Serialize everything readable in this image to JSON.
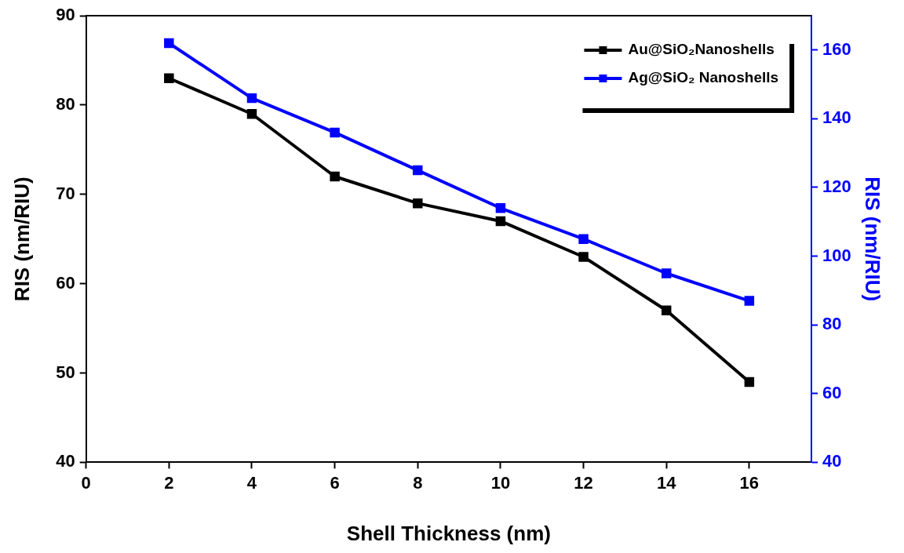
{
  "chart_data": {
    "type": "line",
    "xlabel": "Shell Thickness (nm)",
    "ylabel": "RIS (nm/RIU)",
    "y2label": "RIS (nm/RIU)",
    "x": [
      2,
      4,
      6,
      8,
      10,
      12,
      14,
      16
    ],
    "series": [
      {
        "name": "Au@SiO₂Nanoshells",
        "color": "#000000",
        "values": [
          83,
          79,
          72,
          69,
          67,
          63,
          57,
          49
        ]
      },
      {
        "name": "Ag@SiO₂ Nanoshells",
        "color": "#0000ff",
        "axis": "y2",
        "values": [
          162,
          146,
          136,
          125,
          114,
          105,
          95,
          87
        ]
      }
    ],
    "xlim": [
      0,
      17.5
    ],
    "xticks": [
      0,
      2,
      4,
      6,
      8,
      10,
      12,
      14,
      16
    ],
    "ylim": [
      40,
      90
    ],
    "yticks": [
      40,
      50,
      60,
      70,
      80,
      90
    ],
    "y2lim": [
      40,
      170
    ],
    "y2ticks": [
      40,
      60,
      80,
      100,
      120,
      140,
      160
    ],
    "grid": false,
    "legend": "top right",
    "marker": "square",
    "line_style": "solid"
  }
}
